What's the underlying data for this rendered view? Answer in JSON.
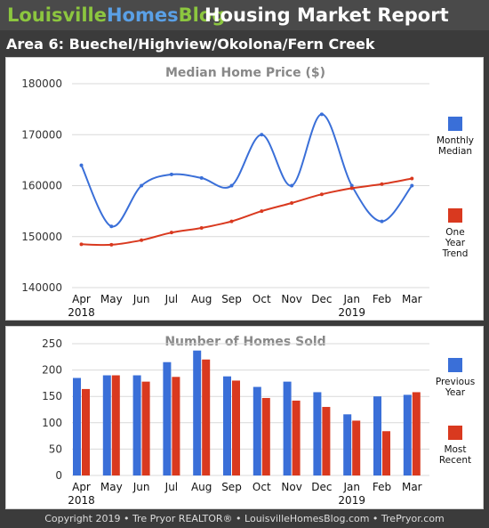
{
  "header": {
    "brand_part1": "Louisville",
    "brand_part2": "Homes",
    "brand_part3": "Blog",
    "report_title": "Housing Market Report",
    "area_title": "Area 6: Buechel/Highview/Okolona/Fern Creek"
  },
  "colors": {
    "blue_series": "#3a6fd8",
    "red_series": "#d9391f",
    "title_gray": "#888888",
    "gridline": "#d9d9d9"
  },
  "chart_data": [
    {
      "type": "line",
      "title": "Median Home Price ($)",
      "categories": [
        "Apr",
        "May",
        "Jun",
        "Jul",
        "Aug",
        "Sep",
        "Oct",
        "Nov",
        "Dec",
        "Jan",
        "Feb",
        "Mar"
      ],
      "year_labels": [
        "2018",
        "2019"
      ],
      "ylim": [
        140000,
        180000
      ],
      "yticks": [
        "140000",
        "150000",
        "160000",
        "170000",
        "180000"
      ],
      "grid": true,
      "legend_placement": "right",
      "series": [
        {
          "name": "Monthly Median",
          "legend_lines": [
            "Monthly",
            "Median"
          ],
          "values": [
            164000,
            152000,
            160000,
            162200,
            161500,
            160000,
            170000,
            160000,
            174000,
            160000,
            153000,
            160000
          ]
        },
        {
          "name": "One Year Trend",
          "legend_lines": [
            "One",
            "Year",
            "Trend"
          ],
          "values": [
            148500,
            148400,
            149300,
            150800,
            151700,
            153000,
            155000,
            156600,
            158300,
            159500,
            160300,
            161400
          ]
        }
      ]
    },
    {
      "type": "bar",
      "title": "Number of Homes Sold",
      "categories": [
        "Apr",
        "May",
        "Jun",
        "Jul",
        "Aug",
        "Sep",
        "Oct",
        "Nov",
        "Dec",
        "Jan",
        "Feb",
        "Mar"
      ],
      "year_labels": [
        "2018",
        "2019"
      ],
      "ylim": [
        0,
        250
      ],
      "yticks": [
        "0",
        "50",
        "100",
        "150",
        "200",
        "250"
      ],
      "grid": true,
      "legend_placement": "right",
      "series": [
        {
          "name": "Previous Year",
          "legend_lines": [
            "Previous",
            "Year"
          ],
          "values": [
            185,
            190,
            190,
            215,
            237,
            188,
            168,
            178,
            158,
            116,
            150,
            153
          ]
        },
        {
          "name": "Most Recent",
          "legend_lines": [
            "Most",
            "Recent"
          ],
          "values": [
            164,
            190,
            178,
            187,
            220,
            180,
            147,
            142,
            130,
            104,
            84,
            158
          ]
        }
      ]
    }
  ],
  "footer": {
    "text": "Copyright 2019 • Tre Pryor REALTOR® • LouisvilleHomesBlog.com • TrePryor.com"
  }
}
